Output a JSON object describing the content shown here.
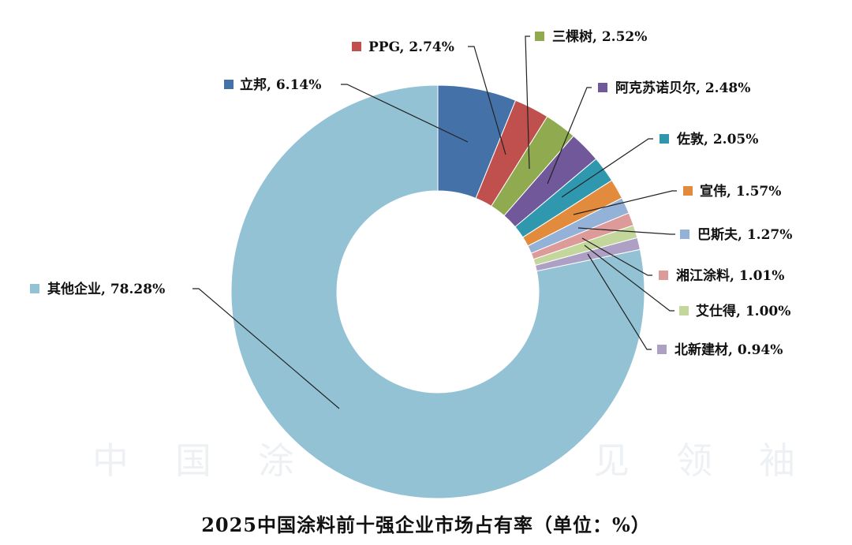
{
  "watermark": {
    "characters": [
      "中",
      "国",
      "涂",
      "见",
      "领",
      "袖"
    ]
  },
  "chart_data": {
    "type": "pie",
    "donut": true,
    "title": "2025中国涂料前十强企业市场占有率（单位：%）",
    "slices": [
      {
        "name": "立邦",
        "value": 6.14,
        "label": "立邦, 6.14%",
        "color": "#4472a8"
      },
      {
        "name": "PPG",
        "value": 2.74,
        "label": "PPG, 2.74%",
        "color": "#c0504d"
      },
      {
        "name": "三棵树",
        "value": 2.52,
        "label": "三棵树, 2.52%",
        "color": "#8faa4f"
      },
      {
        "name": "阿克苏诺贝尔",
        "value": 2.48,
        "label": "阿克苏诺贝尔, 2.48%",
        "color": "#71589a"
      },
      {
        "name": "佐敦",
        "value": 2.05,
        "label": "佐敦, 2.05%",
        "color": "#2f98af"
      },
      {
        "name": "宣伟",
        "value": 1.57,
        "label": "宣伟, 1.57%",
        "color": "#e38b3c"
      },
      {
        "name": "巴斯夫",
        "value": 1.27,
        "label": "巴斯夫, 1.27%",
        "color": "#94b1d8"
      },
      {
        "name": "湘江涂料",
        "value": 1.01,
        "label": "湘江涂料, 1.01%",
        "color": "#dc9a99"
      },
      {
        "name": "艾仕得",
        "value": 1.0,
        "label": "艾仕得, 1.00%",
        "color": "#c3d69b"
      },
      {
        "name": "北新建材",
        "value": 0.94,
        "label": "北新建材, 0.94%",
        "color": "#ada0c4"
      },
      {
        "name": "其他企业",
        "value": 78.28,
        "label": "其他企业, 78.28%",
        "color": "#93c2d5"
      }
    ]
  }
}
